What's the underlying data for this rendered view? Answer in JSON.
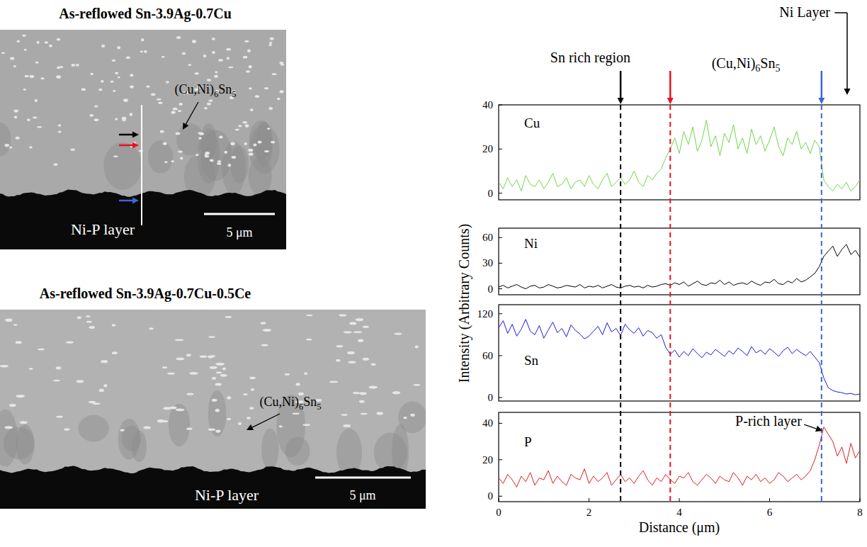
{
  "chart_data": [
    {
      "type": "line",
      "x": [
        0,
        0.1,
        0.2,
        0.3,
        0.4,
        0.5,
        0.6,
        0.7,
        0.8,
        0.9,
        1,
        1.1,
        1.2,
        1.3,
        1.4,
        1.5,
        1.6,
        1.7,
        1.8,
        1.9,
        2,
        2.1,
        2.2,
        2.3,
        2.4,
        2.5,
        2.6,
        2.7,
        2.8,
        2.9,
        3,
        3.1,
        3.2,
        3.3,
        3.4,
        3.5,
        3.6,
        3.7,
        3.8,
        3.9,
        4,
        4.1,
        4.2,
        4.3,
        4.4,
        4.5,
        4.6,
        4.7,
        4.8,
        4.9,
        5,
        5.1,
        5.2,
        5.3,
        5.4,
        5.5,
        5.6,
        5.7,
        5.8,
        5.9,
        6,
        6.1,
        6.2,
        6.3,
        6.4,
        6.5,
        6.6,
        6.7,
        6.8,
        6.9,
        7,
        7.1,
        7.2,
        7.3,
        7.4,
        7.5,
        7.6,
        7.7,
        7.8,
        7.9,
        8
      ],
      "xlim": [
        0,
        8
      ],
      "ylim": [
        -3,
        40
      ],
      "yticks": [
        0,
        20,
        40
      ],
      "tick_labels": "y",
      "series": [
        {
          "name": "Cu",
          "color": "#6fd64a",
          "values": [
            5,
            2,
            7,
            3,
            6,
            1,
            8,
            4,
            3,
            6,
            2,
            5,
            9,
            3,
            4,
            7,
            2,
            5,
            6,
            3,
            8,
            4,
            2,
            6,
            9,
            3,
            5,
            7,
            4,
            6,
            10,
            5,
            3,
            8,
            6,
            9,
            11,
            16,
            20,
            25,
            18,
            28,
            22,
            30,
            19,
            24,
            33,
            21,
            26,
            17,
            27,
            23,
            31,
            20,
            25,
            18,
            29,
            22,
            26,
            19,
            24,
            30,
            21,
            17,
            25,
            22,
            28,
            20,
            23,
            18,
            24,
            21,
            6,
            3,
            1,
            4,
            2,
            5,
            1,
            3,
            6
          ]
        }
      ]
    },
    {
      "type": "line",
      "x": [
        0,
        0.1,
        0.2,
        0.3,
        0.4,
        0.5,
        0.6,
        0.7,
        0.8,
        0.9,
        1,
        1.1,
        1.2,
        1.3,
        1.4,
        1.5,
        1.6,
        1.7,
        1.8,
        1.9,
        2,
        2.1,
        2.2,
        2.3,
        2.4,
        2.5,
        2.6,
        2.7,
        2.8,
        2.9,
        3,
        3.1,
        3.2,
        3.3,
        3.4,
        3.5,
        3.6,
        3.7,
        3.8,
        3.9,
        4,
        4.1,
        4.2,
        4.3,
        4.4,
        4.5,
        4.6,
        4.7,
        4.8,
        4.9,
        5,
        5.1,
        5.2,
        5.3,
        5.4,
        5.5,
        5.6,
        5.7,
        5.8,
        5.9,
        6,
        6.1,
        6.2,
        6.3,
        6.4,
        6.5,
        6.6,
        6.7,
        6.8,
        6.9,
        7,
        7.1,
        7.2,
        7.3,
        7.4,
        7.5,
        7.6,
        7.7,
        7.8,
        7.9,
        8
      ],
      "xlim": [
        0,
        8
      ],
      "ylim": [
        -7,
        71
      ],
      "yticks": [
        0,
        30,
        60
      ],
      "tick_labels": "y",
      "series": [
        {
          "name": "Ni",
          "color": "#000000",
          "values": [
            2,
            4,
            1,
            3,
            5,
            2,
            0,
            3,
            4,
            1,
            2,
            5,
            3,
            1,
            2,
            4,
            3,
            2,
            5,
            1,
            3,
            2,
            4,
            1,
            3,
            5,
            2,
            1,
            3,
            4,
            2,
            3,
            1,
            4,
            2,
            3,
            5,
            6,
            4,
            7,
            5,
            8,
            3,
            6,
            9,
            5,
            4,
            7,
            6,
            10,
            5,
            8,
            4,
            6,
            7,
            5,
            9,
            6,
            4,
            8,
            7,
            11,
            6,
            5,
            9,
            7,
            12,
            8,
            10,
            14,
            18,
            26,
            38,
            44,
            50,
            38,
            46,
            52,
            40,
            45,
            37
          ]
        }
      ]
    },
    {
      "type": "line",
      "x": [
        0,
        0.1,
        0.2,
        0.3,
        0.4,
        0.5,
        0.6,
        0.7,
        0.8,
        0.9,
        1,
        1.1,
        1.2,
        1.3,
        1.4,
        1.5,
        1.6,
        1.7,
        1.8,
        1.9,
        2,
        2.1,
        2.2,
        2.3,
        2.4,
        2.5,
        2.6,
        2.7,
        2.8,
        2.9,
        3,
        3.1,
        3.2,
        3.3,
        3.4,
        3.5,
        3.6,
        3.7,
        3.8,
        3.9,
        4,
        4.1,
        4.2,
        4.3,
        4.4,
        4.5,
        4.6,
        4.7,
        4.8,
        4.9,
        5,
        5.1,
        5.2,
        5.3,
        5.4,
        5.5,
        5.6,
        5.7,
        5.8,
        5.9,
        6,
        6.1,
        6.2,
        6.3,
        6.4,
        6.5,
        6.6,
        6.7,
        6.8,
        6.9,
        7,
        7.1,
        7.2,
        7.3,
        7.4,
        7.5,
        7.6,
        7.7,
        7.8,
        7.9,
        8
      ],
      "xlim": [
        0,
        8
      ],
      "ylim": [
        -5,
        133
      ],
      "yticks": [
        0,
        60,
        120
      ],
      "tick_labels": "y",
      "series": [
        {
          "name": "Sn",
          "color": "#1a1adc",
          "values": [
            100,
            110,
            92,
            105,
            88,
            98,
            112,
            95,
            90,
            103,
            85,
            97,
            108,
            93,
            99,
            87,
            104,
            96,
            91,
            84,
            88,
            95,
            102,
            90,
            107,
            94,
            99,
            89,
            105,
            97,
            92,
            100,
            88,
            96,
            93,
            85,
            90,
            72,
            62,
            68,
            58,
            66,
            60,
            70,
            63,
            57,
            65,
            61,
            69,
            64,
            59,
            67,
            62,
            71,
            66,
            60,
            73,
            64,
            68,
            62,
            70,
            65,
            59,
            67,
            72,
            63,
            69,
            64,
            60,
            66,
            58,
            50,
            28,
            14,
            10,
            8,
            7,
            5,
            6,
            4,
            5
          ]
        }
      ]
    },
    {
      "type": "line",
      "x": [
        0,
        0.1,
        0.2,
        0.3,
        0.4,
        0.5,
        0.6,
        0.7,
        0.8,
        0.9,
        1,
        1.1,
        1.2,
        1.3,
        1.4,
        1.5,
        1.6,
        1.7,
        1.8,
        1.9,
        2,
        2.1,
        2.2,
        2.3,
        2.4,
        2.5,
        2.6,
        2.7,
        2.8,
        2.9,
        3,
        3.1,
        3.2,
        3.3,
        3.4,
        3.5,
        3.6,
        3.7,
        3.8,
        3.9,
        4,
        4.1,
        4.2,
        4.3,
        4.4,
        4.5,
        4.6,
        4.7,
        4.8,
        4.9,
        5,
        5.1,
        5.2,
        5.3,
        5.4,
        5.5,
        5.6,
        5.7,
        5.8,
        5.9,
        6,
        6.1,
        6.2,
        6.3,
        6.4,
        6.5,
        6.6,
        6.7,
        6.8,
        6.9,
        7,
        7.1,
        7.2,
        7.3,
        7.4,
        7.5,
        7.6,
        7.7,
        7.8,
        7.9,
        8
      ],
      "xlim": [
        0,
        8
      ],
      "ylim": [
        -3,
        46
      ],
      "yticks": [
        0,
        20,
        40
      ],
      "xticks": [
        0,
        2,
        4,
        6,
        8
      ],
      "xlabel": "Distance (μm)",
      "series": [
        {
          "name": "P",
          "color": "#dc1e1e",
          "values": [
            10,
            7,
            12,
            9,
            5,
            11,
            8,
            13,
            6,
            10,
            9,
            14,
            7,
            11,
            8,
            6,
            12,
            10,
            9,
            15,
            7,
            11,
            8,
            10,
            13,
            6,
            9,
            12,
            8,
            10,
            7,
            11,
            14,
            9,
            6,
            10,
            8,
            12,
            9,
            7,
            11,
            10,
            13,
            8,
            6,
            9,
            12,
            10,
            7,
            11,
            9,
            8,
            13,
            10,
            6,
            11,
            9,
            12,
            8,
            10,
            7,
            9,
            13,
            11,
            8,
            10,
            12,
            9,
            11,
            14,
            20,
            28,
            38,
            34,
            30,
            22,
            27,
            18,
            29,
            21,
            25
          ]
        }
      ]
    }
  ],
  "figure": {
    "ylabel": "Intensity (Arbitrary Counts)",
    "vlines": [
      {
        "x": 2.7,
        "color": "#000000",
        "line_style": "dashed",
        "label": "Sn rich region"
      },
      {
        "x": 3.8,
        "color": "#e8141c",
        "line_style": "dashed"
      },
      {
        "x": 7.15,
        "color": "#3c64dc",
        "line_style": "dashed"
      }
    ],
    "region_label": "(Cu,Ni)6Sn5",
    "ni_label": "Ni Layer",
    "p_label": "P-rich layer"
  },
  "micrographs": [
    {
      "title": "As-reflowed Sn-3.9Ag-0.7Cu",
      "phase_label": "(Cu,Ni)6Sn5",
      "substrate_label": "Ni-P layer",
      "scale_label": "5 μm"
    },
    {
      "title": "As-reflowed Sn-3.9Ag-0.7Cu-0.5Ce",
      "phase_label": "(Cu,Ni)6Sn5",
      "substrate_label": "Ni-P layer",
      "scale_label": "5 μm"
    }
  ]
}
